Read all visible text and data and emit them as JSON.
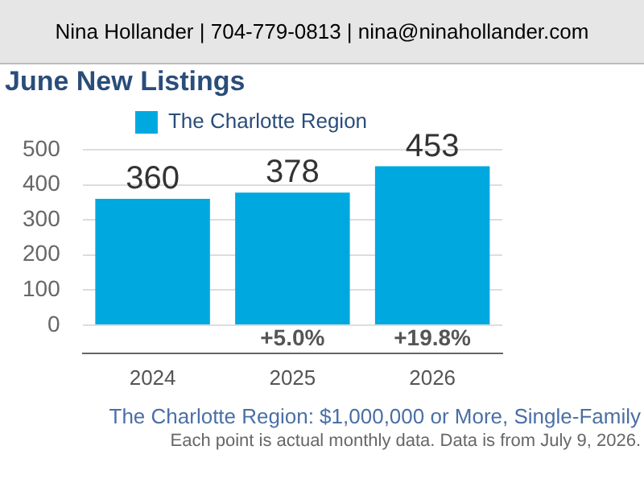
{
  "chart_data": {
    "type": "bar",
    "title": "June New Listings",
    "subtitle": "Nina Hollander | 704-779-0813 | nina@ninahollander.com",
    "categories": [
      "2024",
      "2025",
      "2026"
    ],
    "series": [
      {
        "name": "The Charlotte Region",
        "color": "#00a8e0",
        "values": [
          360,
          378,
          453
        ]
      }
    ],
    "data_labels": true,
    "ylim": [
      -80,
      500
    ],
    "yticks": [
      0,
      100,
      200,
      300,
      400,
      500
    ],
    "grid": "y",
    "legend": "top",
    "annotations": [
      "+5.0%",
      "+19.8%",
      "The Charlotte Region: $1,000,000 or More, Single-Family",
      "Each point is actual monthly data. Data is from July 9, 2026."
    ]
  }
}
